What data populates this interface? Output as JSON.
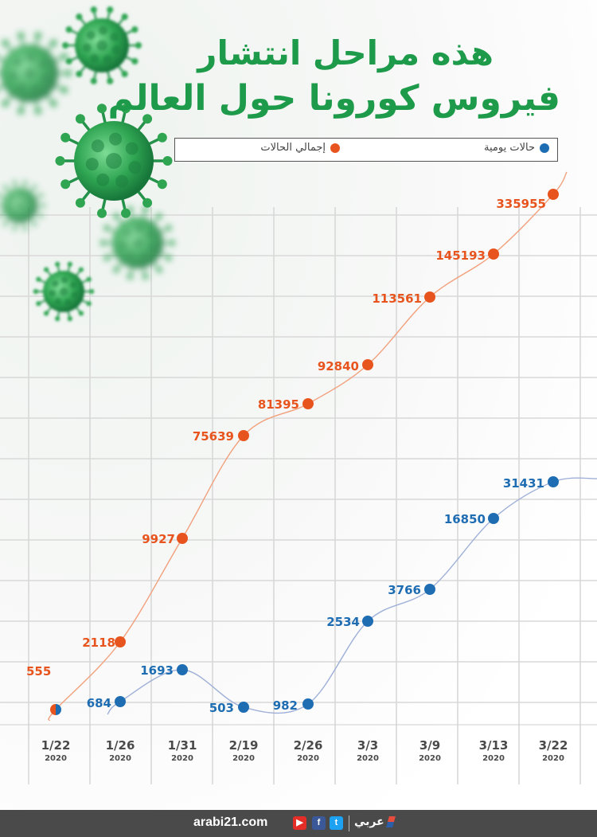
{
  "title": {
    "line1": "هذه مراحل انتشار",
    "line2": "فيروس كورونا حول العالم"
  },
  "legend": {
    "total_label": "إجمالي الحالات",
    "daily_label": "حالات يومية"
  },
  "colors": {
    "total": "#e8541e",
    "daily": "#1e6db3",
    "title": "#1e9b4a",
    "grid": "#d8d8d8"
  },
  "chart_data": {
    "type": "line",
    "categories": [
      "1/22",
      "1/26",
      "1/31",
      "2/19",
      "2/26",
      "3/3",
      "3/9",
      "3/13",
      "3/22"
    ],
    "category_sublabels": [
      "2020",
      "2020",
      "2020",
      "2020",
      "2020",
      "2020",
      "2020",
      "2020",
      "2020"
    ],
    "series": [
      {
        "name": "إجمالي الحالات",
        "values": [
          555,
          2118,
          9927,
          75639,
          81395,
          92840,
          113561,
          145193,
          335955
        ]
      },
      {
        "name": "حالات يومية",
        "values": [
          555,
          684,
          1693,
          503,
          982,
          2534,
          3766,
          16850,
          31431
        ]
      }
    ],
    "data_labels": {
      "total": [
        "555",
        "2118",
        "9927",
        "75639",
        "81395",
        "92840",
        "113561",
        "145193",
        "335955"
      ],
      "daily": [
        "",
        "684",
        "1693",
        "503",
        "982",
        "2534",
        "3766",
        "16850",
        "31431"
      ]
    },
    "grid": true
  },
  "footer": {
    "url": "arabi21.com",
    "logo_text": "عربي",
    "icons": [
      "youtube-icon",
      "facebook-icon",
      "twitter-icon"
    ]
  }
}
